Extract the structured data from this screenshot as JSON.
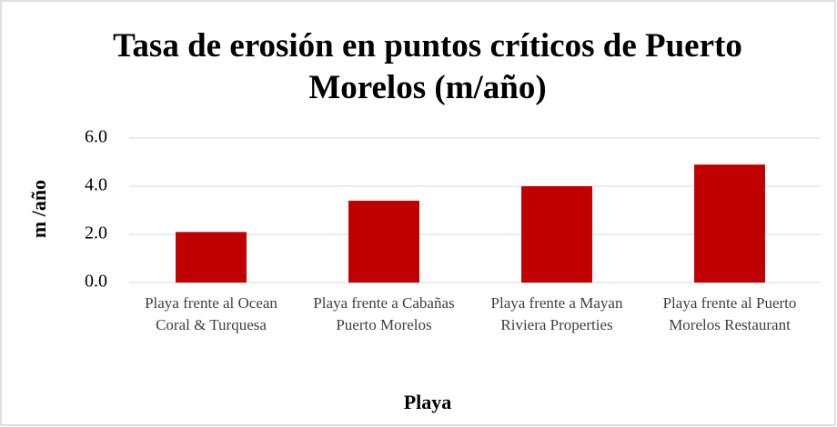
{
  "chart_data": {
    "type": "bar",
    "title": "Tasa de erosión en puntos críticos de Puerto Morelos (m/año)",
    "y_label": "m /año",
    "x_label": "Playa",
    "categories": [
      "Playa frente al Ocean Coral & Turquesa",
      "Playa frente a Cabañas Puerto Morelos",
      "Playa frente a Mayan Riviera Properties",
      "Playa frente al Puerto Morelos Restaurant"
    ],
    "values": [
      2.1,
      3.4,
      4.0,
      4.9
    ],
    "color": "#c00000",
    "ylim": [
      0,
      6
    ],
    "yticks": [
      {
        "value": 0,
        "label": "0.0"
      },
      {
        "value": 2,
        "label": "2.0"
      },
      {
        "value": 4,
        "label": "4.0"
      },
      {
        "value": 6,
        "label": "6.0"
      }
    ],
    "grid": true
  }
}
